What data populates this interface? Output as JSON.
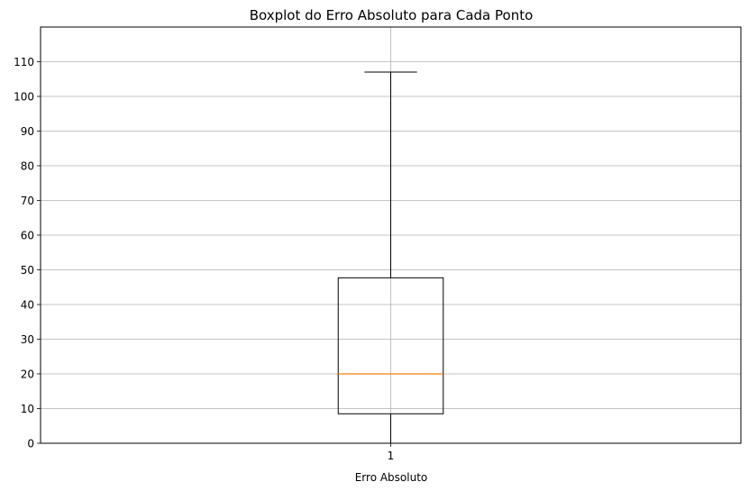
{
  "chart_data": {
    "type": "boxplot",
    "title": "Boxplot do Erro Absoluto para Cada Ponto",
    "xlabel": "Erro Absoluto",
    "ylabel": "",
    "categories": [
      "1"
    ],
    "boxes": [
      {
        "category": "1",
        "whisker_low": 0,
        "q1": 8.5,
        "median": 20,
        "q3": 47.7,
        "whisker_high": 107
      }
    ],
    "ylim": [
      0,
      120
    ],
    "yticks": [
      0,
      10,
      20,
      30,
      40,
      50,
      60,
      70,
      80,
      90,
      100,
      110
    ],
    "xlim": [
      0.5,
      1.5
    ],
    "grid": true,
    "colors": {
      "box": "#000000",
      "median": "#ff7f0e",
      "grid": "#b0b0b0"
    }
  }
}
